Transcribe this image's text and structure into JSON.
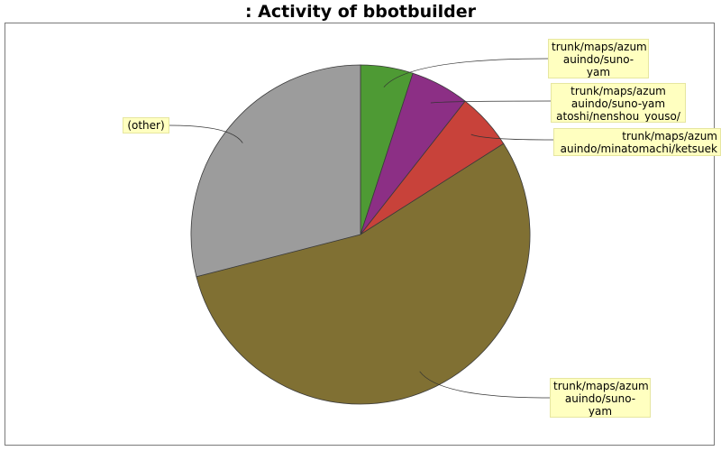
{
  "chart_data": {
    "type": "pie",
    "title": ": Activity of bbotbuilder",
    "start_angle_deg": 90,
    "direction": "clockwise",
    "slices": [
      {
        "label": "trunk/maps/azumauindo/suno-yamatoshi/shops/",
        "display": "trunk/maps/azum\nauindo/suno-yam\natoshi/shops/",
        "value": 5.0,
        "color": "#4e9a34"
      },
      {
        "label": "trunk/maps/azumauindo/suno-yamatoshi/nenshou_youso/",
        "display": "trunk/maps/azum\nauindo/suno-yam\natoshi/nenshou_youso/",
        "value": 5.6,
        "color": "#8c2f85"
      },
      {
        "label": "trunk/maps/azumauindo/minatomachi/ketsuek",
        "display": "trunk/maps/azum\nauindo/minatomachi/ketsuek",
        "value": 5.4,
        "color": "#c8423a"
      },
      {
        "label": "trunk/maps/azumauindo/suno-yamatoshi/buildings/",
        "display": "trunk/maps/azum\nauindo/suno-yam\natoshi/buildings/",
        "value": 55.0,
        "color": "#807033"
      },
      {
        "label": "(other)",
        "display": "(other)",
        "value": 29.0,
        "color": "#9c9c9c"
      }
    ]
  }
}
